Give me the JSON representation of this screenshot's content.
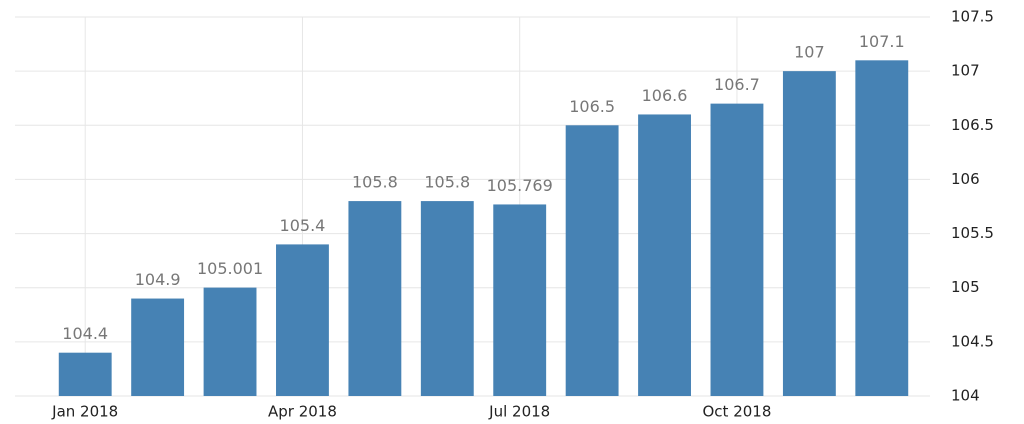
{
  "chart_data": {
    "type": "bar",
    "categories": [
      "Jan 2018",
      null,
      null,
      "Apr 2018",
      null,
      null,
      "Jul 2018",
      null,
      null,
      "Oct 2018",
      null,
      null
    ],
    "values": [
      104.4,
      104.9,
      105.001,
      105.4,
      105.8,
      105.8,
      105.769,
      106.5,
      106.6,
      106.7,
      107,
      107.1
    ],
    "color": "#4682b4",
    "ylim": [
      104,
      107.5
    ],
    "yticks": [
      104,
      104.5,
      105,
      105.5,
      106,
      106.5,
      107,
      107.5
    ],
    "grid": true
  }
}
